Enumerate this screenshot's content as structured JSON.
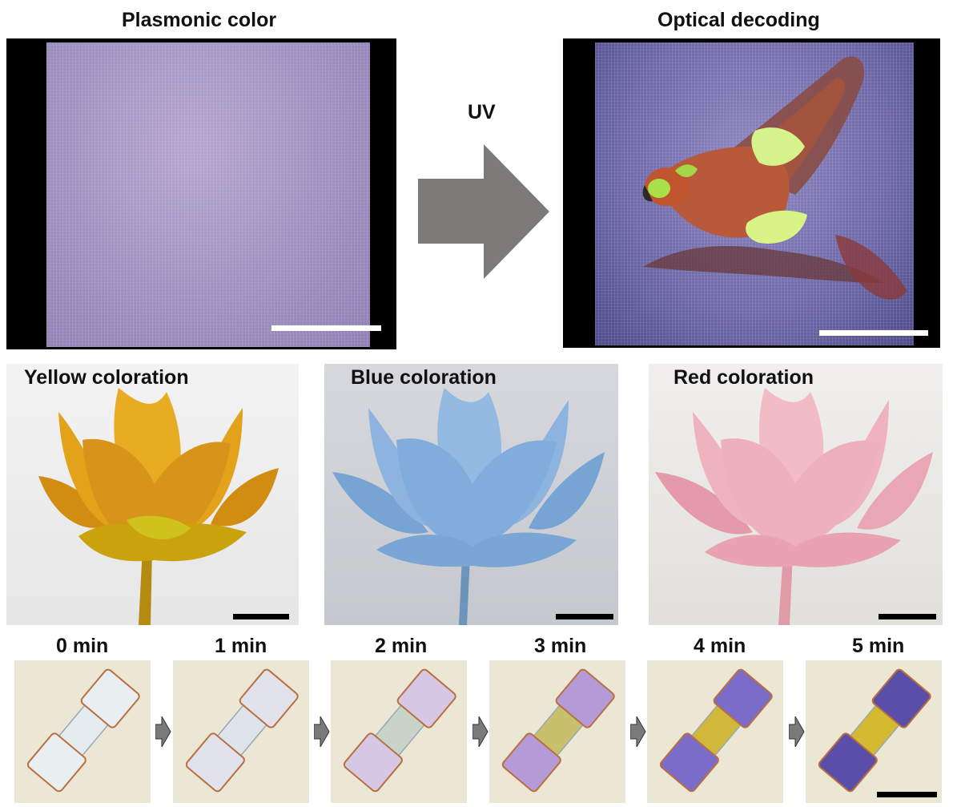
{
  "top": {
    "left_title": "Plasmonic color",
    "right_title": "Optical decoding",
    "arrow_label": "UV"
  },
  "colorations": [
    {
      "label": "Yellow coloration",
      "color": "#e0a010"
    },
    {
      "label": "Blue coloration",
      "color": "#5b95d0"
    },
    {
      "label": "Red coloration",
      "color": "#e8a0b0"
    }
  ],
  "timeline": [
    {
      "label": "0 min",
      "pad": "#e9eef0",
      "bridge": "#e4ecf0"
    },
    {
      "label": "1 min",
      "pad": "#e2e2ec",
      "bridge": "#dfe3ea"
    },
    {
      "label": "2 min",
      "pad": "#d6c8e4",
      "bridge": "#c8d4c8"
    },
    {
      "label": "3 min",
      "pad": "#b59ad8",
      "bridge": "#c9c06e"
    },
    {
      "label": "4 min",
      "pad": "#7a6cc8",
      "bridge": "#d0b93a"
    },
    {
      "label": "5 min",
      "pad": "#5a4ea8",
      "bridge": "#d4ba30"
    }
  ],
  "colors": {
    "scalebar_light": "#ffffff",
    "scalebar_dark": "#000000",
    "arrow": "#7d7b7a",
    "small_arrow": "#7a7a7a"
  }
}
